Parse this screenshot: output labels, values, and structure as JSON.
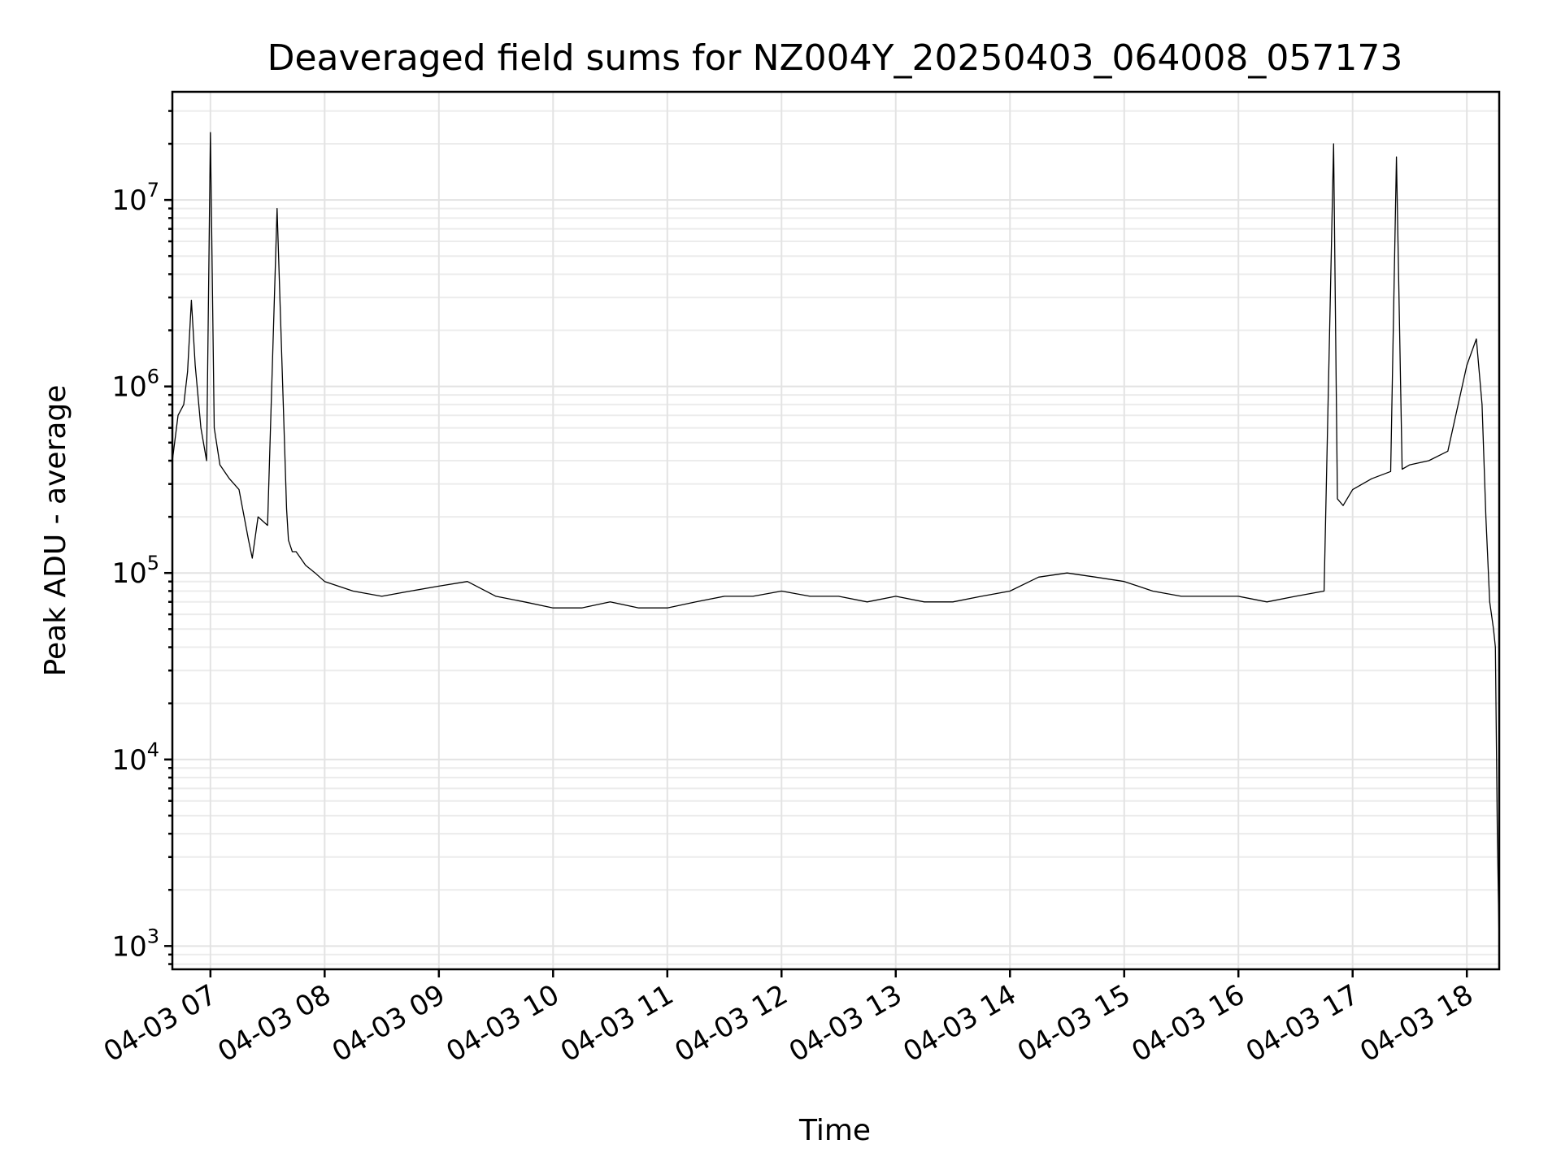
{
  "chart_data": {
    "type": "line",
    "title": "Deaveraged field sums for NZ004Y_20250403_064008_057173",
    "xlabel": "Time",
    "ylabel": "Peak ADU - average",
    "y_scale": "log",
    "ylim": [
      750,
      38000000
    ],
    "xlim": [
      "04-03 06:40",
      "04-03 18:17"
    ],
    "x_ticks": [
      "04-03 07",
      "04-03 08",
      "04-03 09",
      "04-03 10",
      "04-03 11",
      "04-03 12",
      "04-03 13",
      "04-03 14",
      "04-03 15",
      "04-03 16",
      "04-03 17",
      "04-03 18"
    ],
    "y_ticks": [
      {
        "base": "10",
        "exp": "3"
      },
      {
        "base": "10",
        "exp": "4"
      },
      {
        "base": "10",
        "exp": "5"
      },
      {
        "base": "10",
        "exp": "6"
      },
      {
        "base": "10",
        "exp": "7"
      }
    ],
    "grid": true,
    "colors": {
      "line": "#000000",
      "grid": "#e3e3e3"
    },
    "series": [
      {
        "x": [
          "04-03 06:40",
          "04-03 06:43",
          "04-03 06:46",
          "04-03 06:48",
          "04-03 06:50",
          "04-03 06:52",
          "04-03 06:55",
          "04-03 06:58",
          "04-03 07:00",
          "04-03 07:02",
          "04-03 07:05",
          "04-03 07:10",
          "04-03 07:15",
          "04-03 07:20",
          "04-03 07:22",
          "04-03 07:25",
          "04-03 07:30",
          "04-03 07:35",
          "04-03 07:40",
          "04-03 07:41",
          "04-03 07:43",
          "04-03 07:45",
          "04-03 07:50",
          "04-03 07:55",
          "04-03 08:00",
          "04-03 08:15",
          "04-03 08:30",
          "04-03 08:45",
          "04-03 09:00",
          "04-03 09:15",
          "04-03 09:30",
          "04-03 09:45",
          "04-03 10:00",
          "04-03 10:15",
          "04-03 10:30",
          "04-03 10:45",
          "04-03 11:00",
          "04-03 11:15",
          "04-03 11:30",
          "04-03 11:45",
          "04-03 12:00",
          "04-03 12:15",
          "04-03 12:30",
          "04-03 12:45",
          "04-03 13:00",
          "04-03 13:15",
          "04-03 13:30",
          "04-03 13:45",
          "04-03 14:00",
          "04-03 14:15",
          "04-03 14:30",
          "04-03 14:45",
          "04-03 15:00",
          "04-03 15:15",
          "04-03 15:30",
          "04-03 15:45",
          "04-03 16:00",
          "04-03 16:15",
          "04-03 16:30",
          "04-03 16:45",
          "04-03 16:50",
          "04-03 16:52",
          "04-03 16:55",
          "04-03 17:00",
          "04-03 17:10",
          "04-03 17:20",
          "04-03 17:23",
          "04-03 17:26",
          "04-03 17:30",
          "04-03 17:40",
          "04-03 17:50",
          "04-03 18:00",
          "04-03 18:05",
          "04-03 18:08",
          "04-03 18:10",
          "04-03 18:12",
          "04-03 18:14",
          "04-03 18:15",
          "04-03 18:16",
          "04-03 18:17"
        ],
        "y": [
          400000,
          700000,
          800000,
          1200000,
          2900000,
          1300000,
          600000,
          400000,
          23000000,
          600000,
          380000,
          320000,
          280000,
          150000,
          120000,
          200000,
          180000,
          9000000,
          220000,
          150000,
          130000,
          130000,
          110000,
          100000,
          90000,
          80000,
          75000,
          80000,
          85000,
          90000,
          75000,
          70000,
          65000,
          65000,
          70000,
          65000,
          65000,
          70000,
          75000,
          75000,
          80000,
          75000,
          75000,
          70000,
          75000,
          70000,
          70000,
          75000,
          80000,
          95000,
          100000,
          95000,
          90000,
          80000,
          75000,
          75000,
          75000,
          70000,
          75000,
          80000,
          20000000,
          250000,
          230000,
          280000,
          320000,
          350000,
          17000000,
          360000,
          380000,
          400000,
          450000,
          1300000,
          1800000,
          800000,
          200000,
          70000,
          50000,
          40000,
          4000,
          1000
        ]
      }
    ]
  }
}
